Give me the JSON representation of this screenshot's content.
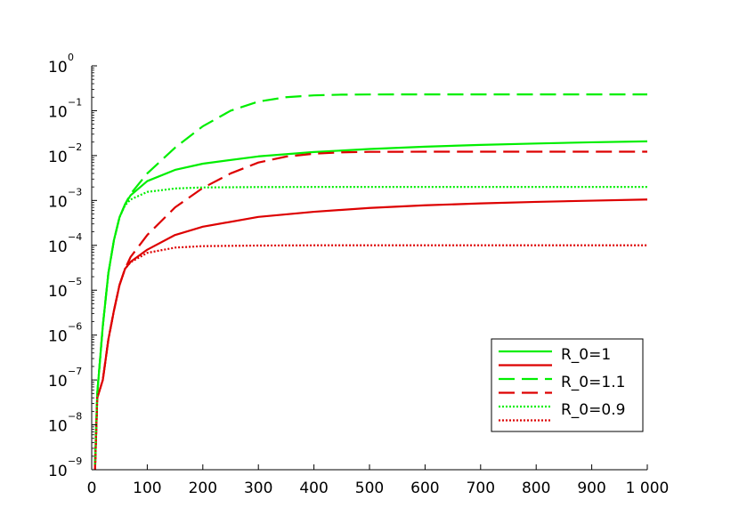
{
  "chart_data": {
    "type": "line",
    "title": "",
    "xlabel": "",
    "ylabel": "",
    "xlim": [
      0,
      1000
    ],
    "ylim_log10": [
      -9,
      0
    ],
    "y_scale": "log",
    "grid": false,
    "legend_position": "bottom-right",
    "x_ticks": [
      {
        "value": 0,
        "label": "0"
      },
      {
        "value": 100,
        "label": "100"
      },
      {
        "value": 200,
        "label": "200"
      },
      {
        "value": 300,
        "label": "300"
      },
      {
        "value": 400,
        "label": "400"
      },
      {
        "value": 500,
        "label": "500"
      },
      {
        "value": 600,
        "label": "600"
      },
      {
        "value": 700,
        "label": "700"
      },
      {
        "value": 800,
        "label": "800"
      },
      {
        "value": 900,
        "label": "900"
      },
      {
        "value": 1000,
        "label": "1 000"
      }
    ],
    "y_ticks": [
      {
        "exp": -9,
        "base": "10",
        "exponent": "−9"
      },
      {
        "exp": -8,
        "base": "10",
        "exponent": "−8"
      },
      {
        "exp": -7,
        "base": "10",
        "exponent": "−7"
      },
      {
        "exp": -6,
        "base": "10",
        "exponent": "−6"
      },
      {
        "exp": -5,
        "base": "10",
        "exponent": "−5"
      },
      {
        "exp": -4,
        "base": "10",
        "exponent": "−4"
      },
      {
        "exp": -3,
        "base": "10",
        "exponent": "−3"
      },
      {
        "exp": -2,
        "base": "10",
        "exponent": "−2"
      },
      {
        "exp": -1,
        "base": "10",
        "exponent": "−1"
      },
      {
        "exp": 0,
        "base": "10",
        "exponent": "0"
      }
    ],
    "legend": [
      {
        "label": "R_0=1",
        "color": "#00ee00",
        "dash": "solid"
      },
      {
        "label": "",
        "color": "#dd0000",
        "dash": "solid"
      },
      {
        "label": "R_0=1.1",
        "color": "#00ee00",
        "dash": "dashed"
      },
      {
        "label": "",
        "color": "#dd0000",
        "dash": "dashed"
      },
      {
        "label": "R_0=0.9",
        "color": "#00ee00",
        "dash": "dotted"
      },
      {
        "label": "",
        "color": "#dd0000",
        "dash": "dotted"
      }
    ],
    "series": [
      {
        "color": "#00ee00",
        "dash": "solid",
        "x": [
          6,
          10,
          20,
          30,
          40,
          50,
          60,
          70,
          100,
          150,
          200,
          300,
          400,
          500,
          600,
          700,
          800,
          900,
          1000
        ],
        "y": [
          1.3e-09,
          5e-08,
          1.6e-06,
          2.4e-05,
          0.00013,
          0.00042,
          0.00082,
          0.0013,
          0.0027,
          0.0048,
          0.0066,
          0.0096,
          0.012,
          0.014,
          0.0158,
          0.0173,
          0.0186,
          0.0198,
          0.0208
        ]
      },
      {
        "color": "#dd0000",
        "dash": "solid",
        "x": [
          6,
          10,
          20,
          30,
          40,
          50,
          60,
          70,
          100,
          150,
          200,
          300,
          400,
          500,
          600,
          700,
          800,
          900,
          1000
        ],
        "y": [
          1e-09,
          4e-08,
          1e-07,
          8e-07,
          3.5e-06,
          1.3e-05,
          3e-05,
          4.3e-05,
          8e-05,
          0.00017,
          0.00026,
          0.00043,
          0.00056,
          0.00068,
          0.00078,
          0.00086,
          0.00093,
          0.00099,
          0.00105
        ]
      },
      {
        "color": "#00ee00",
        "dash": "dashed",
        "x": [
          6,
          10,
          20,
          30,
          40,
          50,
          60,
          70,
          100,
          150,
          200,
          250,
          300,
          350,
          400,
          450,
          500,
          600,
          700,
          800,
          900,
          1000
        ],
        "y": [
          1.3e-09,
          5e-08,
          1.6e-06,
          2.4e-05,
          0.00013,
          0.00042,
          0.00082,
          0.0014,
          0.004,
          0.015,
          0.045,
          0.1,
          0.16,
          0.2,
          0.22,
          0.228,
          0.23,
          0.231,
          0.231,
          0.231,
          0.231,
          0.231
        ]
      },
      {
        "color": "#dd0000",
        "dash": "dashed",
        "x": [
          6,
          10,
          20,
          30,
          40,
          50,
          60,
          70,
          100,
          150,
          200,
          250,
          300,
          350,
          400,
          450,
          500,
          600,
          700,
          800,
          900,
          1000
        ],
        "y": [
          1e-09,
          4e-08,
          1e-07,
          8e-07,
          3.5e-06,
          1.3e-05,
          3e-05,
          5.5e-05,
          0.00017,
          0.0007,
          0.0019,
          0.004,
          0.007,
          0.0095,
          0.011,
          0.0118,
          0.0121,
          0.0122,
          0.0122,
          0.0122,
          0.0122,
          0.0122
        ]
      },
      {
        "color": "#00ee00",
        "dash": "dotted",
        "x": [
          6,
          10,
          20,
          30,
          40,
          50,
          60,
          70,
          100,
          150,
          200,
          300,
          400,
          500,
          600,
          700,
          800,
          900,
          1000
        ],
        "y": [
          1.3e-09,
          5e-08,
          1.6e-06,
          2.4e-05,
          0.00013,
          0.00042,
          0.00078,
          0.00105,
          0.00155,
          0.00185,
          0.00195,
          0.00199,
          0.002,
          0.002,
          0.002,
          0.002,
          0.002,
          0.002,
          0.002
        ]
      },
      {
        "color": "#dd0000",
        "dash": "dotted",
        "x": [
          6,
          10,
          20,
          30,
          40,
          50,
          60,
          70,
          100,
          150,
          200,
          300,
          400,
          500,
          600,
          700,
          800,
          900,
          1000
        ],
        "y": [
          1e-09,
          4e-08,
          1e-07,
          8e-07,
          3.5e-06,
          1.3e-05,
          3e-05,
          4.2e-05,
          6.8e-05,
          8.9e-05,
          9.6e-05,
          9.9e-05,
          0.0001,
          0.0001,
          0.0001,
          0.0001,
          0.0001,
          0.0001,
          0.0001
        ]
      }
    ]
  }
}
